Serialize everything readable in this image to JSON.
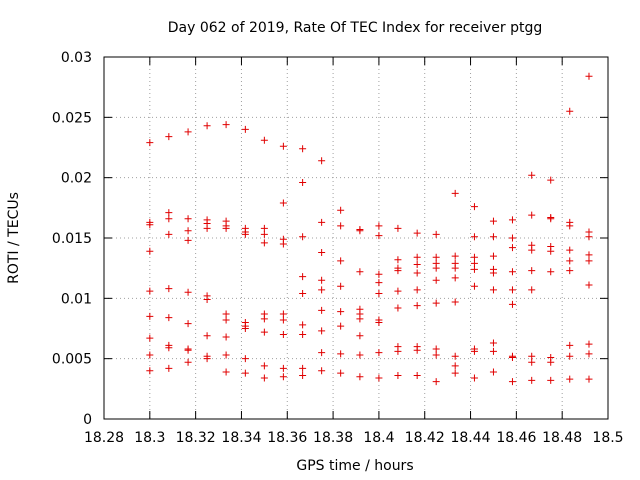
{
  "chart_data": {
    "type": "scatter",
    "title": "Day 062 of 2019, Rate Of TEC Index for receiver ptgg",
    "xlabel": "GPS time / hours",
    "ylabel": "ROTI / TECUs",
    "xlim": [
      18.28,
      18.5
    ],
    "ylim": [
      0,
      0.03
    ],
    "xticks": [
      18.28,
      18.3,
      18.32,
      18.34,
      18.36,
      18.38,
      18.4,
      18.42,
      18.44,
      18.46,
      18.48,
      18.5
    ],
    "xtick_labels": [
      "18.28",
      "18.3",
      "18.32",
      "18.34",
      "18.36",
      "18.38",
      "18.4",
      "18.42",
      "18.44",
      "18.46",
      "18.48",
      "18.5"
    ],
    "yticks": [
      0,
      0.005,
      0.01,
      0.015,
      0.02,
      0.025,
      0.03
    ],
    "ytick_labels": [
      "0",
      "0.005",
      "0.01",
      "0.015",
      "0.02",
      "0.025",
      "0.03"
    ],
    "grid": true,
    "marker": "+",
    "color": "#e00000",
    "series": [
      {
        "name": "ROTI",
        "points": [
          [
            18.3,
            0.0229
          ],
          [
            18.3,
            0.0163
          ],
          [
            18.3,
            0.0161
          ],
          [
            18.3,
            0.0139
          ],
          [
            18.3,
            0.0106
          ],
          [
            18.3,
            0.0085
          ],
          [
            18.3,
            0.0067
          ],
          [
            18.3,
            0.0053
          ],
          [
            18.3,
            0.004
          ],
          [
            18.3083,
            0.0234
          ],
          [
            18.3083,
            0.0171
          ],
          [
            18.3083,
            0.0166
          ],
          [
            18.3083,
            0.0153
          ],
          [
            18.3083,
            0.0108
          ],
          [
            18.3083,
            0.0084
          ],
          [
            18.3083,
            0.0061
          ],
          [
            18.3083,
            0.0059
          ],
          [
            18.3083,
            0.0042
          ],
          [
            18.3167,
            0.0238
          ],
          [
            18.3167,
            0.0166
          ],
          [
            18.3167,
            0.0156
          ],
          [
            18.3167,
            0.0148
          ],
          [
            18.3167,
            0.0105
          ],
          [
            18.3167,
            0.0079
          ],
          [
            18.3167,
            0.0058
          ],
          [
            18.3167,
            0.0057
          ],
          [
            18.3167,
            0.0047
          ],
          [
            18.325,
            0.0243
          ],
          [
            18.325,
            0.0165
          ],
          [
            18.325,
            0.0162
          ],
          [
            18.325,
            0.0158
          ],
          [
            18.325,
            0.0102
          ],
          [
            18.325,
            0.0099
          ],
          [
            18.325,
            0.0069
          ],
          [
            18.325,
            0.0052
          ],
          [
            18.325,
            0.005
          ],
          [
            18.3333,
            0.0244
          ],
          [
            18.3333,
            0.0164
          ],
          [
            18.3333,
            0.016
          ],
          [
            18.3333,
            0.0158
          ],
          [
            18.3333,
            0.0087
          ],
          [
            18.3333,
            0.0082
          ],
          [
            18.3333,
            0.0068
          ],
          [
            18.3333,
            0.0053
          ],
          [
            18.3333,
            0.0039
          ],
          [
            18.3417,
            0.024
          ],
          [
            18.3417,
            0.0158
          ],
          [
            18.3417,
            0.0155
          ],
          [
            18.3417,
            0.0153
          ],
          [
            18.3417,
            0.008
          ],
          [
            18.3417,
            0.0077
          ],
          [
            18.3417,
            0.0075
          ],
          [
            18.3417,
            0.005
          ],
          [
            18.3417,
            0.0038
          ],
          [
            18.35,
            0.0231
          ],
          [
            18.35,
            0.0158
          ],
          [
            18.35,
            0.0153
          ],
          [
            18.35,
            0.0146
          ],
          [
            18.35,
            0.0087
          ],
          [
            18.35,
            0.0083
          ],
          [
            18.35,
            0.0072
          ],
          [
            18.35,
            0.0044
          ],
          [
            18.35,
            0.0034
          ],
          [
            18.3583,
            0.0226
          ],
          [
            18.3583,
            0.0179
          ],
          [
            18.3583,
            0.0149
          ],
          [
            18.3583,
            0.0145
          ],
          [
            18.3583,
            0.0087
          ],
          [
            18.3583,
            0.0082
          ],
          [
            18.3583,
            0.007
          ],
          [
            18.3583,
            0.0042
          ],
          [
            18.3583,
            0.0035
          ],
          [
            18.3667,
            0.0224
          ],
          [
            18.3667,
            0.0196
          ],
          [
            18.3667,
            0.0151
          ],
          [
            18.3667,
            0.0118
          ],
          [
            18.3667,
            0.0104
          ],
          [
            18.3667,
            0.0078
          ],
          [
            18.3667,
            0.007
          ],
          [
            18.3667,
            0.0042
          ],
          [
            18.3667,
            0.0036
          ],
          [
            18.375,
            0.0214
          ],
          [
            18.375,
            0.0163
          ],
          [
            18.375,
            0.0138
          ],
          [
            18.375,
            0.0115
          ],
          [
            18.375,
            0.0107
          ],
          [
            18.375,
            0.009
          ],
          [
            18.375,
            0.0073
          ],
          [
            18.375,
            0.0055
          ],
          [
            18.375,
            0.004
          ],
          [
            18.3833,
            0.0173
          ],
          [
            18.3833,
            0.016
          ],
          [
            18.3833,
            0.0131
          ],
          [
            18.3833,
            0.011
          ],
          [
            18.3833,
            0.0089
          ],
          [
            18.3833,
            0.0077
          ],
          [
            18.3833,
            0.0054
          ],
          [
            18.3833,
            0.0038
          ],
          [
            18.3917,
            0.0157
          ],
          [
            18.3917,
            0.0156
          ],
          [
            18.3917,
            0.0122
          ],
          [
            18.3917,
            0.0091
          ],
          [
            18.3917,
            0.0087
          ],
          [
            18.3917,
            0.0083
          ],
          [
            18.3917,
            0.0069
          ],
          [
            18.3917,
            0.0053
          ],
          [
            18.3917,
            0.0035
          ],
          [
            18.4,
            0.016
          ],
          [
            18.4,
            0.0152
          ],
          [
            18.4,
            0.012
          ],
          [
            18.4,
            0.0113
          ],
          [
            18.4,
            0.0104
          ],
          [
            18.4,
            0.0082
          ],
          [
            18.4,
            0.008
          ],
          [
            18.4,
            0.0055
          ],
          [
            18.4,
            0.0034
          ],
          [
            18.4083,
            0.0158
          ],
          [
            18.4083,
            0.0132
          ],
          [
            18.4083,
            0.0125
          ],
          [
            18.4083,
            0.0123
          ],
          [
            18.4083,
            0.0106
          ],
          [
            18.4083,
            0.0092
          ],
          [
            18.4083,
            0.006
          ],
          [
            18.4083,
            0.0056
          ],
          [
            18.4083,
            0.0036
          ],
          [
            18.4167,
            0.0154
          ],
          [
            18.4167,
            0.0134
          ],
          [
            18.4167,
            0.0128
          ],
          [
            18.4167,
            0.0121
          ],
          [
            18.4167,
            0.0107
          ],
          [
            18.4167,
            0.0094
          ],
          [
            18.4167,
            0.006
          ],
          [
            18.4167,
            0.0057
          ],
          [
            18.4167,
            0.0036
          ],
          [
            18.425,
            0.0153
          ],
          [
            18.425,
            0.0134
          ],
          [
            18.425,
            0.0129
          ],
          [
            18.425,
            0.0125
          ],
          [
            18.425,
            0.0115
          ],
          [
            18.425,
            0.0096
          ],
          [
            18.425,
            0.0058
          ],
          [
            18.425,
            0.0053
          ],
          [
            18.425,
            0.0031
          ],
          [
            18.4333,
            0.0187
          ],
          [
            18.4333,
            0.0135
          ],
          [
            18.4333,
            0.0129
          ],
          [
            18.4333,
            0.0125
          ],
          [
            18.4333,
            0.0117
          ],
          [
            18.4333,
            0.0097
          ],
          [
            18.4333,
            0.0052
          ],
          [
            18.4333,
            0.0044
          ],
          [
            18.4333,
            0.0038
          ],
          [
            18.4417,
            0.0176
          ],
          [
            18.4417,
            0.0151
          ],
          [
            18.4417,
            0.0134
          ],
          [
            18.4417,
            0.0129
          ],
          [
            18.4417,
            0.0124
          ],
          [
            18.4417,
            0.011
          ],
          [
            18.4417,
            0.0058
          ],
          [
            18.4417,
            0.0056
          ],
          [
            18.4417,
            0.0034
          ],
          [
            18.45,
            0.0164
          ],
          [
            18.45,
            0.0151
          ],
          [
            18.45,
            0.0135
          ],
          [
            18.45,
            0.0124
          ],
          [
            18.45,
            0.0121
          ],
          [
            18.45,
            0.0107
          ],
          [
            18.45,
            0.0063
          ],
          [
            18.45,
            0.0056
          ],
          [
            18.45,
            0.0039
          ],
          [
            18.4583,
            0.0165
          ],
          [
            18.4583,
            0.015
          ],
          [
            18.4583,
            0.0142
          ],
          [
            18.4583,
            0.0122
          ],
          [
            18.4583,
            0.0107
          ],
          [
            18.4583,
            0.0095
          ],
          [
            18.4583,
            0.0052
          ],
          [
            18.4583,
            0.0051
          ],
          [
            18.4583,
            0.0031
          ],
          [
            18.4667,
            0.0202
          ],
          [
            18.4667,
            0.0169
          ],
          [
            18.4667,
            0.0144
          ],
          [
            18.4667,
            0.014
          ],
          [
            18.4667,
            0.0123
          ],
          [
            18.4667,
            0.0107
          ],
          [
            18.4667,
            0.0052
          ],
          [
            18.4667,
            0.0047
          ],
          [
            18.4667,
            0.0032
          ],
          [
            18.475,
            0.0198
          ],
          [
            18.475,
            0.0167
          ],
          [
            18.475,
            0.0166
          ],
          [
            18.475,
            0.0143
          ],
          [
            18.475,
            0.0139
          ],
          [
            18.475,
            0.0122
          ],
          [
            18.475,
            0.0051
          ],
          [
            18.475,
            0.0047
          ],
          [
            18.475,
            0.0032
          ],
          [
            18.4833,
            0.0255
          ],
          [
            18.4833,
            0.0163
          ],
          [
            18.4833,
            0.016
          ],
          [
            18.4833,
            0.014
          ],
          [
            18.4833,
            0.0131
          ],
          [
            18.4833,
            0.0123
          ],
          [
            18.4833,
            0.0061
          ],
          [
            18.4833,
            0.0052
          ],
          [
            18.4833,
            0.0033
          ],
          [
            18.4917,
            0.0284
          ],
          [
            18.4917,
            0.0155
          ],
          [
            18.4917,
            0.0151
          ],
          [
            18.4917,
            0.0136
          ],
          [
            18.4917,
            0.0131
          ],
          [
            18.4917,
            0.0111
          ],
          [
            18.4917,
            0.0062
          ],
          [
            18.4917,
            0.0054
          ],
          [
            18.4917,
            0.0033
          ]
        ]
      }
    ]
  }
}
